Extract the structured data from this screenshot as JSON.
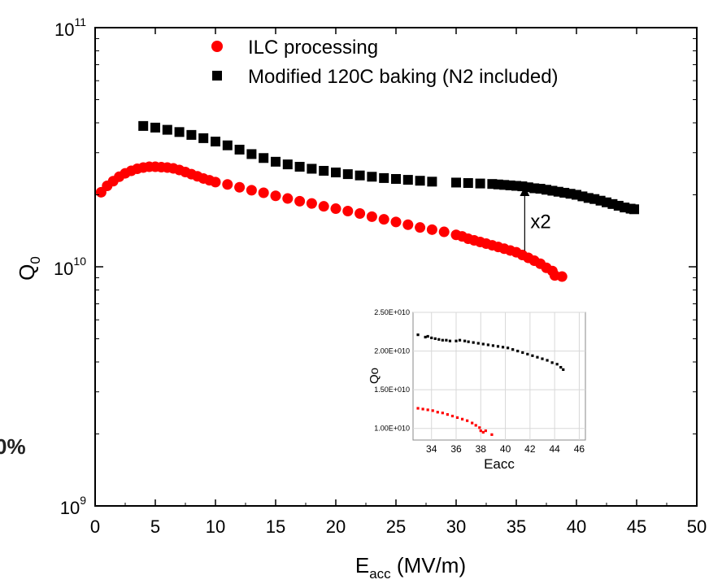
{
  "edge_text": "0%",
  "chart_data": [
    {
      "type": "scatter",
      "x_axis": {
        "label_main": "E",
        "label_sub": "acc",
        "label_unit": " (MV/m)",
        "range": [
          0,
          50
        ],
        "ticks": [
          0,
          5,
          10,
          15,
          20,
          25,
          30,
          35,
          40,
          45,
          50
        ],
        "tick_labels": [
          "0",
          "5",
          "10",
          "15",
          "20",
          "25",
          "30",
          "35",
          "40",
          "45",
          "50"
        ]
      },
      "y_axis": {
        "label_main": "Q",
        "label_sub": "0",
        "scale": "log",
        "range": [
          1000000000.0,
          100000000000.0
        ],
        "ticks": [
          1000000000.0,
          10000000000.0,
          100000000000.0
        ],
        "tick_labels": [
          {
            "base": "10",
            "exp": "9"
          },
          {
            "base": "10",
            "exp": "10"
          },
          {
            "base": "10",
            "exp": "11"
          }
        ]
      },
      "legend": {
        "placement": "top-center"
      },
      "series": [
        {
          "name": "ILC processing",
          "marker": "circle",
          "color": "#ff0000",
          "x": [
            0.5,
            1.0,
            1.5,
            2.0,
            2.5,
            3.0,
            3.5,
            4.0,
            4.5,
            5.0,
            5.5,
            6.0,
            6.5,
            7.0,
            7.5,
            8.0,
            8.5,
            9.0,
            9.5,
            10.0,
            11.0,
            12.0,
            13.0,
            14.0,
            15.0,
            16.0,
            17.0,
            18.0,
            19.0,
            20.0,
            21.0,
            22.0,
            23.0,
            24.0,
            25.0,
            26.0,
            27.0,
            28.0,
            29.0,
            30.0,
            30.5,
            31.0,
            31.5,
            32.0,
            32.5,
            33.0,
            33.5,
            34.0,
            34.5,
            35.0,
            35.5,
            36.0,
            36.5,
            37.0,
            37.5,
            38.0,
            38.2,
            38.8
          ],
          "y": [
            20500000000.0,
            21800000000.0,
            22800000000.0,
            23800000000.0,
            24600000000.0,
            25200000000.0,
            25700000000.0,
            26000000000.0,
            26200000000.0,
            26200000000.0,
            26100000000.0,
            26000000000.0,
            25800000000.0,
            25400000000.0,
            24900000000.0,
            24400000000.0,
            23900000000.0,
            23400000000.0,
            23000000000.0,
            22600000000.0,
            22100000000.0,
            21500000000.0,
            20900000000.0,
            20400000000.0,
            19800000000.0,
            19300000000.0,
            18800000000.0,
            18400000000.0,
            17900000000.0,
            17500000000.0,
            17100000000.0,
            16700000000.0,
            16200000000.0,
            15800000000.0,
            15400000000.0,
            15000000000.0,
            14600000000.0,
            14300000000.0,
            14000000000.0,
            13600000000.0,
            13400000000.0,
            13100000000.0,
            12900000000.0,
            12700000000.0,
            12500000000.0,
            12300000000.0,
            12100000000.0,
            11900000000.0,
            11700000000.0,
            11500000000.0,
            11200000000.0,
            10900000000.0,
            10600000000.0,
            10300000000.0,
            9900000000.0,
            9600000000.0,
            9200000000.0,
            9100000000.0
          ]
        },
        {
          "name": "Modified 120C baking (N2 included)",
          "marker": "square",
          "color": "#000000",
          "x": [
            4.0,
            5.0,
            6.0,
            7.0,
            8.0,
            9.0,
            10.0,
            11.0,
            12.0,
            13.0,
            14.0,
            15.0,
            16.0,
            17.0,
            18.0,
            19.0,
            20.0,
            21.0,
            22.0,
            23.0,
            24.0,
            25.0,
            26.0,
            27.0,
            28.0,
            30.0,
            31.0,
            32.0,
            33.0,
            33.5,
            34.0,
            34.5,
            35.0,
            35.5,
            36.0,
            36.5,
            37.0,
            37.5,
            38.0,
            38.5,
            39.0,
            39.5,
            40.0,
            40.5,
            41.0,
            41.5,
            42.0,
            42.5,
            43.0,
            43.5,
            44.0,
            44.5,
            44.8
          ],
          "y": [
            38800000000.0,
            38200000000.0,
            37400000000.0,
            36600000000.0,
            35600000000.0,
            34500000000.0,
            33400000000.0,
            32200000000.0,
            30900000000.0,
            29600000000.0,
            28500000000.0,
            27500000000.0,
            26800000000.0,
            26200000000.0,
            25700000000.0,
            25200000000.0,
            24800000000.0,
            24400000000.0,
            24100000000.0,
            23800000000.0,
            23500000000.0,
            23300000000.0,
            23100000000.0,
            22900000000.0,
            22700000000.0,
            22500000000.0,
            22400000000.0,
            22300000000.0,
            22200000000.0,
            22100000000.0,
            22000000000.0,
            21900000000.0,
            21800000000.0,
            21700000000.0,
            21500000000.0,
            21300000000.0,
            21200000000.0,
            21000000000.0,
            20800000000.0,
            20600000000.0,
            20400000000.0,
            20200000000.0,
            20000000000.0,
            19700000000.0,
            19400000000.0,
            19200000000.0,
            18900000000.0,
            18600000000.0,
            18300000000.0,
            18000000000.0,
            17700000000.0,
            17500000000.0,
            17400000000.0
          ]
        }
      ],
      "annotations": [
        {
          "text": "x2",
          "arrow_x": 35.7,
          "arrow_from_y": 11700000000.0,
          "arrow_to_y": 21700000000.0
        }
      ]
    },
    {
      "type": "scatter",
      "inset": true,
      "x_axis": {
        "label": "Eacc",
        "range": [
          32.5,
          46.5
        ],
        "ticks": [
          34,
          36,
          38,
          40,
          42,
          44,
          46
        ],
        "tick_labels": [
          "34",
          "36",
          "38",
          "40",
          "42",
          "44",
          "46"
        ]
      },
      "y_axis": {
        "label": "Qo",
        "range": [
          8500000000.0,
          25000000000.0
        ],
        "ticks": [
          10000000000.0,
          15000000000.0,
          20000000000.0,
          25000000000.0
        ],
        "tick_labels": [
          "1.00E+010",
          "1.50E+010",
          "2.00E+010",
          "2.50E+010"
        ]
      },
      "grid": true,
      "series": [
        {
          "color": "#000000",
          "x": [
            32.9,
            33.5,
            33.7,
            34.0,
            34.3,
            34.6,
            34.9,
            35.2,
            35.5,
            36.0,
            36.3,
            36.7,
            37.0,
            37.4,
            37.8,
            38.2,
            38.6,
            39.0,
            39.4,
            39.8,
            40.2,
            40.6,
            41.0,
            41.4,
            41.8,
            42.2,
            42.6,
            43.0,
            43.4,
            43.8,
            44.2,
            44.5,
            44.7
          ],
          "y": [
            22100000000.0,
            21800000000.0,
            21900000000.0,
            21700000000.0,
            21600000000.0,
            21500000000.0,
            21400000000.0,
            21400000000.0,
            21300000000.0,
            21300000000.0,
            21400000000.0,
            21300000000.0,
            21200000000.0,
            21100000000.0,
            21000000000.0,
            20900000000.0,
            20800000000.0,
            20700000000.0,
            20600000000.0,
            20500000000.0,
            20400000000.0,
            20200000000.0,
            20000000000.0,
            19800000000.0,
            19600000000.0,
            19400000000.0,
            19200000000.0,
            19000000000.0,
            18800000000.0,
            18500000000.0,
            18300000000.0,
            17900000000.0,
            17600000000.0
          ]
        },
        {
          "color": "#ff0000",
          "x": [
            32.9,
            33.3,
            33.7,
            34.1,
            34.5,
            34.9,
            35.3,
            35.7,
            36.1,
            36.5,
            36.9,
            37.3,
            37.6,
            37.9,
            38.0,
            38.2,
            38.4,
            38.9
          ],
          "y": [
            12600000000.0,
            12500000000.0,
            12400000000.0,
            12300000000.0,
            12100000000.0,
            12000000000.0,
            11800000000.0,
            11600000000.0,
            11400000000.0,
            11200000000.0,
            11000000000.0,
            10700000000.0,
            10400000000.0,
            10100000000.0,
            9700000000.0,
            9500000000.0,
            9700000000.0,
            9200000000.0
          ]
        }
      ]
    }
  ]
}
